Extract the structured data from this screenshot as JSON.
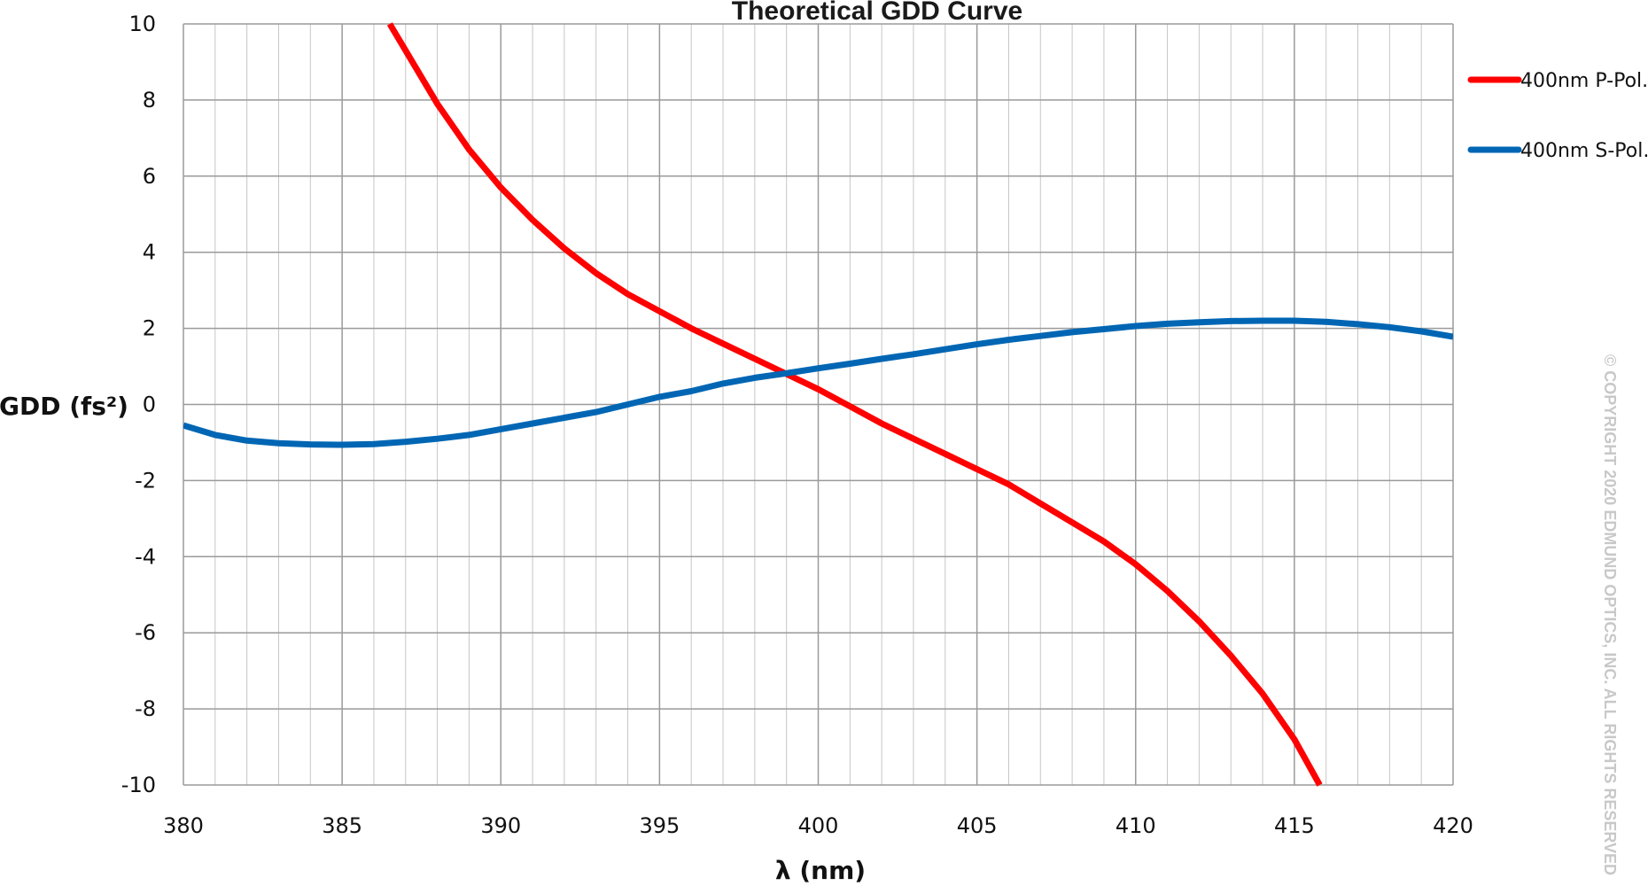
{
  "chart_data": {
    "type": "line",
    "title": "Theoretical GDD Curve",
    "xlabel": "λ (nm)",
    "ylabel": "GDD (fs²)",
    "xlim": [
      380,
      420
    ],
    "ylim": [
      -10,
      10
    ],
    "x_ticks": [
      "380",
      "385",
      "390",
      "395",
      "400",
      "405",
      "410",
      "415",
      "420"
    ],
    "y_ticks": [
      "10",
      "8",
      "6",
      "4",
      "2",
      "0",
      "-2",
      "-4",
      "-6",
      "-8",
      "-10"
    ],
    "grid": true,
    "legend_position": "right",
    "series": [
      {
        "name": "400nm P-Pol.",
        "color": "#ff0000",
        "x": [
          386.5,
          387,
          388,
          389,
          390,
          391,
          392,
          393,
          394,
          395,
          396,
          397,
          398,
          399,
          400,
          401,
          402,
          403,
          404,
          405,
          406,
          407,
          408,
          409,
          410,
          411,
          412,
          413,
          414,
          415,
          415.8
        ],
        "y": [
          10.0,
          9.3,
          7.9,
          6.7,
          5.7,
          4.85,
          4.1,
          3.45,
          2.9,
          2.45,
          2.0,
          1.6,
          1.2,
          0.8,
          0.4,
          -0.05,
          -0.5,
          -0.9,
          -1.3,
          -1.7,
          -2.1,
          -2.6,
          -3.1,
          -3.6,
          -4.2,
          -4.9,
          -5.7,
          -6.6,
          -7.6,
          -8.8,
          -10.0
        ]
      },
      {
        "name": "400nm S-Pol.",
        "color": "#0066b4",
        "x": [
          380,
          381,
          382,
          383,
          384,
          385,
          386,
          387,
          388,
          389,
          390,
          391,
          392,
          393,
          394,
          395,
          396,
          397,
          398,
          399,
          400,
          401,
          402,
          403,
          404,
          405,
          406,
          407,
          408,
          409,
          410,
          411,
          412,
          413,
          414,
          415,
          416,
          417,
          418,
          419,
          420
        ],
        "y": [
          -0.55,
          -0.8,
          -0.95,
          -1.02,
          -1.05,
          -1.06,
          -1.04,
          -0.98,
          -0.9,
          -0.8,
          -0.65,
          -0.5,
          -0.35,
          -0.2,
          0.0,
          0.2,
          0.35,
          0.55,
          0.7,
          0.82,
          0.95,
          1.07,
          1.2,
          1.32,
          1.45,
          1.58,
          1.7,
          1.8,
          1.9,
          1.98,
          2.06,
          2.12,
          2.16,
          2.19,
          2.2,
          2.2,
          2.17,
          2.11,
          2.03,
          1.92,
          1.78
        ]
      }
    ]
  },
  "watermark": "© COPYRIGHT 2020 EDMUND OPTICS, INC. ALL RIGHTS RESERVED"
}
